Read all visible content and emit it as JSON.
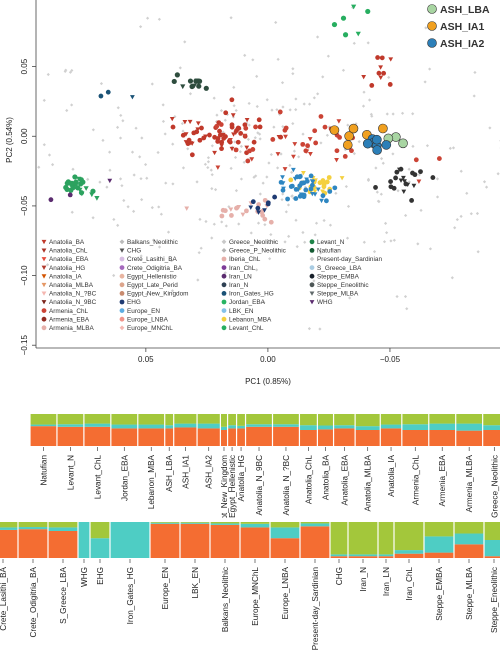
{
  "chart_data": [
    {
      "type": "scatter",
      "xlabel": "PC1 (0.85%)",
      "ylabel": "PC2 (0.54%)",
      "x_reversed": true,
      "xlim": [
        0.095,
        -0.1
      ],
      "ylim": [
        -0.152,
        0.105
      ],
      "x_ticks": [
        {
          "value": 0.05,
          "label": "0.05"
        },
        {
          "value": 0.0,
          "label": "0.00"
        },
        {
          "value": -0.05,
          "label": "−0.05"
        },
        {
          "value": -0.1,
          "label": "−0.10"
        }
      ],
      "y_ticks": [
        {
          "value": 0.05,
          "label": "0.05"
        },
        {
          "value": 0.0,
          "label": "0.00"
        },
        {
          "value": -0.05,
          "label": "−0.05"
        },
        {
          "value": -0.1,
          "label": "−0.10"
        },
        {
          "value": -0.15,
          "label": "−0.15"
        }
      ],
      "inset_legend": [
        {
          "label": "ASH_LBA",
          "color": "#a8d5a2"
        },
        {
          "label": "ASH_IA1",
          "color": "#f0a020"
        },
        {
          "label": "ASH_IA2",
          "color": "#2c7fb8"
        }
      ],
      "legend": [
        {
          "label": "Anatolia_BA",
          "color": "#c0392b",
          "marker": "triangle-down"
        },
        {
          "label": "Anatolia_ChL",
          "color": "#a93226",
          "marker": "triangle-down"
        },
        {
          "label": "Anatolia_EBA",
          "color": "#e74c3c",
          "marker": "triangle-down"
        },
        {
          "label": "Anatolia_HG",
          "color": "#b03a2e",
          "marker": "triangle-down"
        },
        {
          "label": "Anatolia_IA",
          "color": "#d35400",
          "marker": "triangle-down"
        },
        {
          "label": "Anatolia_MLBA",
          "color": "#e59866",
          "marker": "triangle-down"
        },
        {
          "label": "Anatolia_N_?BC",
          "color": "#f5b7b1",
          "marker": "triangle-down"
        },
        {
          "label": "Anatolia_N_9BC",
          "color": "#7b241c",
          "marker": "triangle-down"
        },
        {
          "label": "Armenia_ChL",
          "color": "#cb4335",
          "marker": "circle"
        },
        {
          "label": "Armenia_EBA",
          "color": "#922b21",
          "marker": "circle"
        },
        {
          "label": "Armenia_MLBA",
          "color": "#e6b0aa",
          "marker": "circle"
        },
        {
          "label": "Balkans_Neolithic",
          "color": "#bbbbbb",
          "marker": "diamond"
        },
        {
          "label": "CHG",
          "color": "#555555",
          "marker": "triangle-down"
        },
        {
          "label": "Crete_Lasithi_BA",
          "color": "#d7bde2",
          "marker": "circle"
        },
        {
          "label": "Crete_Odigitria_BA",
          "color": "#a569bd",
          "marker": "circle"
        },
        {
          "label": "Egypt_Hellenistic",
          "color": "#e8b4a0",
          "marker": "circle"
        },
        {
          "label": "Egypt_Late_Perid",
          "color": "#dca58c",
          "marker": "circle"
        },
        {
          "label": "Egypt_New_Kingdom",
          "color": "#c98b6f",
          "marker": "circle"
        },
        {
          "label": "EHG",
          "color": "#1f3b73",
          "marker": "circle"
        },
        {
          "label": "Europe_EN",
          "color": "#5dade2",
          "marker": "circle"
        },
        {
          "label": "Europe_LNBA",
          "color": "#f1948a",
          "marker": "circle"
        },
        {
          "label": "Europe_MNChL",
          "color": "#f5b7b1",
          "marker": "diamond"
        },
        {
          "label": "Greece_Neolithic",
          "color": "#c8c8c8",
          "marker": "diamond"
        },
        {
          "label": "Greece_P_Neolithic",
          "color": "#b5b5b5",
          "marker": "diamond"
        },
        {
          "label": "Iberia_ChL",
          "color": "#e6b0aa",
          "marker": "circle"
        },
        {
          "label": "Iran_ChL",
          "color": "#7d3c98",
          "marker": "circle"
        },
        {
          "label": "Iran_LN",
          "color": "#5b2c6f",
          "marker": "circle"
        },
        {
          "label": "Iran_N",
          "color": "#2e4053",
          "marker": "circle"
        },
        {
          "label": "Iron_Gates_HG",
          "color": "#1a5276",
          "marker": "circle"
        },
        {
          "label": "Jordan_EBA",
          "color": "#28b463",
          "marker": "circle"
        },
        {
          "label": "LBK_EN",
          "color": "#85c1e9",
          "marker": "circle"
        },
        {
          "label": "Lebanon_MBA",
          "color": "#f4d03f",
          "marker": "circle"
        },
        {
          "label": "Levant_ChL",
          "color": "#27ae60",
          "marker": "circle"
        },
        {
          "label": "Levant_N",
          "color": "#1e8449",
          "marker": "circle"
        },
        {
          "label": "Natufian",
          "color": "#145a32",
          "marker": "circle"
        },
        {
          "label": "Present-day_Sardinian",
          "color": "#cccccc",
          "marker": "diamond"
        },
        {
          "label": "S_Greece_LBA",
          "color": "#a9cce3",
          "marker": "circle"
        },
        {
          "label": "Steppe_EMBA",
          "color": "#17202a",
          "marker": "circle"
        },
        {
          "label": "Steppe_Eneolithic",
          "color": "#4d5656",
          "marker": "circle"
        },
        {
          "label": "Steppe_MLBA",
          "color": "#616a6b",
          "marker": "triangle-down"
        },
        {
          "label": "WHG",
          "color": "#5b2c6f",
          "marker": "triangle-down"
        }
      ],
      "clusters": [
        {
          "name": "ASH_LBA",
          "color": "#a8d5a2",
          "cx": -0.047,
          "cy": -0.004,
          "sx": 0.004,
          "sy": 0.003,
          "n": 3,
          "size": 4.5
        },
        {
          "name": "ASH_IA1",
          "color": "#f0a020",
          "cx": -0.037,
          "cy": 0.001,
          "sx": 0.006,
          "sy": 0.004,
          "n": 6,
          "size": 4.5
        },
        {
          "name": "ASH_IA2",
          "color": "#2c7fb8",
          "cx": -0.043,
          "cy": -0.006,
          "sx": 0.006,
          "sy": 0.004,
          "n": 8,
          "size": 4.5
        },
        {
          "name": "Greece_Neolithic",
          "color": "#d0d0d0",
          "cx": 0.0,
          "cy": -0.02,
          "sx": 0.055,
          "sy": 0.045,
          "n": 320,
          "size": 1.6
        },
        {
          "name": "Levant_ChL",
          "color": "#2ca25f",
          "cx": 0.078,
          "cy": -0.037,
          "sx": 0.004,
          "sy": 0.004,
          "n": 25,
          "size": 2.6
        },
        {
          "name": "Anatolia_ChL",
          "color": "#c0392b",
          "cx": 0.02,
          "cy": 0.0,
          "sx": 0.012,
          "sy": 0.008,
          "n": 60,
          "size": 2.4
        },
        {
          "name": "Armenia_ChL",
          "color": "#cb4335",
          "cx": -0.012,
          "cy": -0.007,
          "sx": 0.022,
          "sy": 0.01,
          "n": 45,
          "size": 2.4
        },
        {
          "name": "Levant_N",
          "color": "#f4d03f",
          "cx": -0.019,
          "cy": -0.034,
          "sx": 0.004,
          "sy": 0.004,
          "n": 25,
          "size": 2.4
        },
        {
          "name": "Iran_N",
          "color": "#2e86c1",
          "cx": -0.014,
          "cy": -0.036,
          "sx": 0.006,
          "sy": 0.005,
          "n": 40,
          "size": 2.4
        },
        {
          "name": "Steppe_EMBA",
          "color": "#333333",
          "cx": -0.056,
          "cy": -0.03,
          "sx": 0.005,
          "sy": 0.004,
          "n": 20,
          "size": 2.4
        },
        {
          "name": "Europe_LNBA",
          "color": "#e6b0aa",
          "cx": 0.008,
          "cy": -0.055,
          "sx": 0.008,
          "sy": 0.004,
          "n": 20,
          "size": 2.4
        },
        {
          "name": "EHG",
          "color": "#1f3b73",
          "cx": 0.002,
          "cy": -0.048,
          "sx": 0.003,
          "sy": 0.003,
          "n": 8,
          "size": 2.4
        },
        {
          "name": "CHG",
          "color": "#2e4d3e",
          "cx": 0.029,
          "cy": 0.038,
          "sx": 0.004,
          "sy": 0.003,
          "n": 12,
          "size": 2.6
        },
        {
          "name": "Iran_LN",
          "color": "#27ae60",
          "cx": -0.035,
          "cy": 0.082,
          "sx": 0.006,
          "sy": 0.008,
          "n": 6,
          "size": 2.6
        },
        {
          "name": "WHG",
          "color": "#c0392b",
          "cx": -0.048,
          "cy": 0.04,
          "sx": 0.006,
          "sy": 0.01,
          "n": 10,
          "size": 2.4
        },
        {
          "name": "Natufian",
          "color": "#1a5276",
          "cx": 0.068,
          "cy": 0.028,
          "sx": 0.006,
          "sy": 0.004,
          "n": 3,
          "size": 2.4
        },
        {
          "name": "Iron_Gates_HG",
          "color": "#5b2c6f",
          "cx": 0.07,
          "cy": -0.04,
          "sx": 0.01,
          "sy": 0.006,
          "n": 3,
          "size": 2.4
        }
      ]
    },
    {
      "type": "bar",
      "stacked": true,
      "categories": [
        "Natufian",
        "Levant_N",
        "Levant_ChL",
        "Jordan_EBA",
        "Lebanon_MBA",
        "ASH_LBA",
        "ASH_IA1",
        "ASH_IA2",
        "Egypt_New_Kingdom",
        "Egypt_Hellenistic",
        "Anatolia_HG",
        "Anatolia_N_9BC",
        "Anatolia_N_?BC",
        "Anatolia_ChL",
        "Anatolia_BA",
        "Anatolia_EBA",
        "Anatolia_MLBA",
        "Anatolia_IA",
        "Armenia_ChL",
        "Armenia_EBA",
        "Armenia_MLBA",
        "Greece_Neolithic"
      ],
      "widths": [
        1.5,
        1.5,
        1.5,
        1.5,
        1.5,
        0.5,
        1.3,
        1.3,
        0.4,
        0.5,
        0.5,
        1.5,
        1.5,
        1.0,
        0.9,
        1.2,
        1.4,
        1.2,
        1.5,
        1.5,
        1.5,
        1.3
      ],
      "series": [
        {
          "name": "",
          "color": "#f46d32",
          "values": [
            0.62,
            0.6,
            0.6,
            0.55,
            0.55,
            0.55,
            0.58,
            0.55,
            0.5,
            0.55,
            0.55,
            0.6,
            0.6,
            0.5,
            0.52,
            0.55,
            0.5,
            0.55,
            0.5,
            0.5,
            0.48,
            0.5
          ]
        },
        {
          "name": "",
          "color": "#4ecdc4",
          "values": [
            0.05,
            0.08,
            0.1,
            0.12,
            0.12,
            0.1,
            0.12,
            0.15,
            0.1,
            0.1,
            0.08,
            0.08,
            0.08,
            0.15,
            0.12,
            0.1,
            0.12,
            0.12,
            0.18,
            0.2,
            0.22,
            0.15
          ]
        },
        {
          "name": "",
          "color": "#a3c73b",
          "values": [
            0.33,
            0.32,
            0.3,
            0.33,
            0.33,
            0.35,
            0.3,
            0.3,
            0.4,
            0.35,
            0.37,
            0.32,
            0.32,
            0.35,
            0.36,
            0.35,
            0.38,
            0.33,
            0.32,
            0.3,
            0.3,
            0.35
          ]
        }
      ]
    },
    {
      "type": "bar",
      "stacked": true,
      "categories": [
        "Crete_Lasithi_BA",
        "Crete_Odigitria_BA",
        "S_Greece_LBA",
        "WHG",
        "EHG",
        "Iron_Gates_HG",
        "Europe_EN",
        "LBK_EN",
        "Balkans_Neolithic",
        "Europe_MNChL",
        "Europe_LNBA",
        "Present-day_Sardinian",
        "CHG",
        "Iran_N",
        "Iran_LN",
        "Iran_ChL",
        "Steppe_EMBA",
        "Steppe_MLBA",
        "Steppe_Eneolithic"
      ],
      "widths": [
        1.5,
        1.5,
        1.5,
        0.6,
        1.0,
        2.0,
        1.5,
        1.5,
        1.5,
        1.5,
        1.5,
        1.5,
        0.9,
        1.5,
        0.8,
        1.5,
        1.5,
        1.5,
        1.0
      ],
      "series": [
        {
          "name": "",
          "color": "#f46d32",
          "values": [
            0.78,
            0.8,
            0.75,
            0.0,
            0.0,
            0.0,
            0.95,
            0.95,
            0.92,
            0.85,
            0.55,
            0.88,
            0.05,
            0.05,
            0.05,
            0.12,
            0.15,
            0.38,
            0.05
          ]
        },
        {
          "name": "",
          "color": "#4ecdc4",
          "values": [
            0.07,
            0.06,
            0.1,
            1.0,
            0.55,
            1.0,
            0.03,
            0.03,
            0.04,
            0.1,
            0.3,
            0.08,
            0.05,
            0.05,
            0.05,
            0.1,
            0.45,
            0.3,
            0.45
          ]
        },
        {
          "name": "",
          "color": "#a3c73b",
          "values": [
            0.15,
            0.14,
            0.15,
            0.0,
            0.45,
            0.0,
            0.02,
            0.02,
            0.04,
            0.05,
            0.15,
            0.04,
            0.9,
            0.9,
            0.9,
            0.78,
            0.4,
            0.32,
            0.5
          ]
        }
      ]
    }
  ]
}
